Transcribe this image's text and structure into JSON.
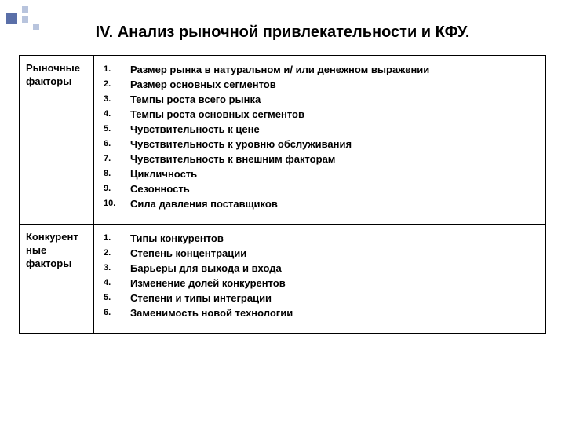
{
  "decor": {
    "color_big": "#5a6fa8",
    "color_small": "#b8c4dd"
  },
  "title": "IV. Анализ рыночной привлекательности и КФУ.",
  "table": {
    "rows": [
      {
        "label": "Рыночные факторы",
        "items": [
          "Размер рынка в натуральном и/ или денежном выражении",
          "Размер основных сегментов",
          "Темпы роста всего рынка",
          "Темпы роста основных сегментов",
          "Чувствительность к цене",
          "Чувствительность к уровню обслуживания",
          "Чувствительность к внешним факторам",
          "Цикличность",
          "Сезонность",
          "Сила давления поставщиков"
        ]
      },
      {
        "label": "Конкурент ные факторы",
        "items": [
          "Типы конкурентов",
          "Степень концентрации",
          "Барьеры для выхода и входа",
          "Изменение долей конкурентов",
          "Степени и типы интеграции",
          "Заменимость новой технологии"
        ]
      }
    ]
  },
  "styles": {
    "background_color": "#ffffff",
    "border_color": "#000000",
    "title_fontsize": 20,
    "label_fontsize": 13,
    "item_fontsize": 13,
    "number_fontsize": 11,
    "font_weight": "bold",
    "line_height": 19
  }
}
